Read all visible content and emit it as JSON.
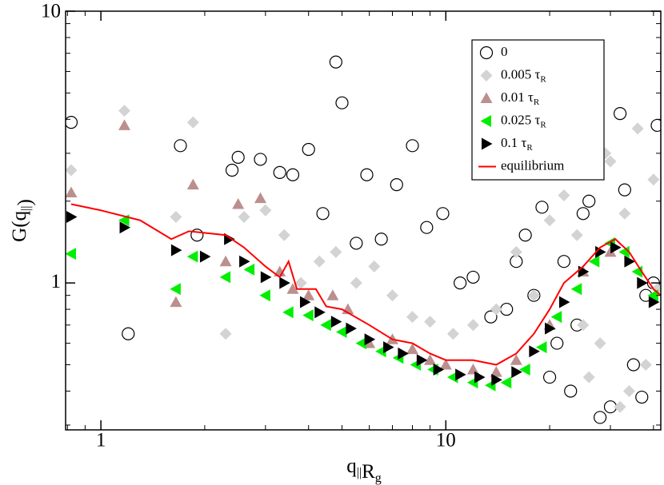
{
  "chart_data": {
    "type": "scatter",
    "xlog": true,
    "ylog": true,
    "xlim": [
      0.79,
      42
    ],
    "ylim": [
      0.288,
      10
    ],
    "xticks": [
      1,
      10
    ],
    "yticks": [
      1,
      10
    ],
    "xminorticks": [
      0.8,
      0.9,
      2,
      3,
      4,
      5,
      6,
      7,
      8,
      9,
      20,
      30,
      40
    ],
    "yminorticks": [
      0.3,
      0.4,
      0.5,
      0.6,
      0.7,
      0.8,
      0.9,
      2,
      3,
      4,
      5,
      6,
      7,
      8,
      9
    ],
    "xlabel": [
      {
        "text": "q",
        "sub": "||"
      },
      {
        "text": "R",
        "sub": "g"
      }
    ],
    "ylabel": [
      {
        "text": "G(q",
        "sub": "||"
      },
      {
        "text": ")"
      }
    ],
    "legend": "upper right",
    "series": [
      {
        "name": "0",
        "marker": "circle",
        "color": "#000000",
        "x": [
          0.82,
          1.2,
          1.7,
          1.9,
          2.4,
          2.5,
          2.9,
          3.3,
          3.6,
          4.0,
          4.4,
          4.8,
          5.0,
          5.5,
          5.9,
          6.5,
          7.2,
          8.0,
          8.8,
          9.8,
          11,
          12,
          13.5,
          15,
          17,
          19,
          21,
          23,
          25,
          27,
          30,
          32,
          35,
          38,
          41,
          16,
          20,
          24,
          28,
          33,
          37,
          40,
          18,
          22,
          26
        ],
        "values": [
          3.9,
          0.65,
          3.2,
          1.5,
          2.6,
          2.9,
          2.85,
          2.55,
          2.5,
          3.1,
          1.8,
          6.5,
          4.6,
          1.4,
          2.5,
          1.45,
          2.3,
          3.2,
          1.6,
          1.8,
          1.0,
          1.05,
          0.75,
          0.8,
          1.5,
          1.9,
          0.6,
          0.4,
          1.8,
          4.6,
          0.35,
          4.2,
          0.5,
          0.9,
          3.8,
          1.2,
          0.45,
          0.7,
          0.32,
          2.2,
          0.38,
          1.0,
          0.9,
          1.2,
          2.0
        ]
      },
      {
        "name": "0.005 τ",
        "name_subscript": "R",
        "marker": "diamond",
        "color": "#d3d3d3",
        "x": [
          0.82,
          1.17,
          1.65,
          1.85,
          2.3,
          2.6,
          3.0,
          3.4,
          3.8,
          4.3,
          4.8,
          5.5,
          6.2,
          7.0,
          8.0,
          9.0,
          10.5,
          12,
          14,
          16,
          18,
          20,
          22,
          24,
          26,
          28,
          30,
          32,
          34,
          36,
          38,
          40,
          41,
          29,
          33,
          25
        ],
        "values": [
          2.6,
          4.3,
          1.75,
          3.9,
          0.65,
          1.75,
          1.85,
          1.5,
          1.0,
          1.2,
          1.3,
          1.0,
          1.15,
          0.9,
          0.75,
          0.72,
          0.65,
          0.7,
          0.8,
          1.3,
          0.9,
          1.7,
          2.1,
          1.5,
          0.45,
          0.6,
          2.8,
          0.35,
          0.4,
          3.7,
          0.5,
          2.4,
          0.95,
          3.0,
          1.8,
          0.7
        ]
      },
      {
        "name": "0.01 τ",
        "name_subscript": "R",
        "marker": "triangle-up",
        "color": "#bc8f8f",
        "x": [
          0.82,
          1.17,
          1.65,
          1.85,
          2.3,
          2.5,
          2.9,
          3.3,
          3.6,
          4.0,
          4.7,
          5.2,
          6.0,
          7.0,
          8.0,
          9.0,
          10,
          12,
          14,
          16,
          20,
          25,
          30
        ],
        "values": [
          2.15,
          3.8,
          0.85,
          2.3,
          1.2,
          1.95,
          2.05,
          1.1,
          0.95,
          0.9,
          0.9,
          0.8,
          0.6,
          0.62,
          0.57,
          0.52,
          0.5,
          0.48,
          0.47,
          0.52,
          0.7,
          1.1,
          1.3
        ]
      },
      {
        "name": "0.025 τ",
        "name_subscript": "R",
        "marker": "triangle-left",
        "color": "#00ee00",
        "x": [
          0.82,
          1.17,
          1.65,
          1.85,
          2.3,
          2.7,
          3.0,
          3.5,
          4.0,
          4.5,
          5.0,
          5.7,
          6.5,
          7.3,
          8.2,
          9.2,
          10.5,
          12,
          13.5,
          15,
          17,
          19,
          21,
          24,
          27,
          30,
          33,
          36,
          40
        ],
        "values": [
          1.28,
          1.7,
          0.95,
          1.25,
          1.05,
          1.12,
          0.9,
          0.78,
          0.76,
          0.7,
          0.66,
          0.6,
          0.56,
          0.53,
          0.5,
          0.48,
          0.45,
          0.43,
          0.42,
          0.43,
          0.48,
          0.58,
          0.75,
          0.95,
          1.2,
          1.4,
          1.3,
          1.1,
          0.9
        ]
      },
      {
        "name": "0.1 τ",
        "name_subscript": "R",
        "marker": "triangle-right",
        "color": "#000000",
        "x": [
          0.82,
          1.17,
          1.65,
          2.0,
          2.35,
          2.6,
          3.0,
          3.4,
          3.9,
          4.3,
          4.8,
          5.3,
          6.0,
          6.8,
          7.5,
          8.5,
          9.5,
          11,
          12.5,
          14,
          16,
          18,
          20,
          22,
          25,
          28,
          31,
          34,
          37,
          40
        ],
        "values": [
          1.75,
          1.6,
          1.32,
          1.25,
          1.45,
          1.2,
          1.05,
          1.0,
          0.85,
          0.78,
          0.72,
          0.68,
          0.62,
          0.58,
          0.55,
          0.52,
          0.48,
          0.46,
          0.45,
          0.44,
          0.47,
          0.56,
          0.68,
          0.85,
          1.1,
          1.3,
          1.35,
          1.2,
          1.0,
          0.85
        ]
      },
      {
        "name": "equilibrium",
        "marker": "line",
        "color": "#ff0000",
        "x": [
          0.82,
          1.0,
          1.3,
          1.6,
          1.8,
          2.3,
          2.6,
          3.0,
          3.3,
          3.5,
          3.7,
          4.2,
          4.5,
          5,
          6,
          7,
          8,
          9,
          10,
          12,
          14,
          16,
          18,
          20,
          22,
          25,
          28,
          31,
          34,
          37,
          40,
          42
        ],
        "values": [
          1.95,
          1.85,
          1.7,
          1.45,
          1.55,
          1.5,
          1.35,
          1.15,
          1.05,
          1.2,
          0.95,
          0.95,
          0.82,
          0.8,
          0.7,
          0.62,
          0.6,
          0.55,
          0.52,
          0.52,
          0.5,
          0.55,
          0.65,
          0.8,
          1.0,
          1.15,
          1.35,
          1.45,
          1.3,
          1.1,
          0.95,
          0.9
        ]
      }
    ]
  }
}
